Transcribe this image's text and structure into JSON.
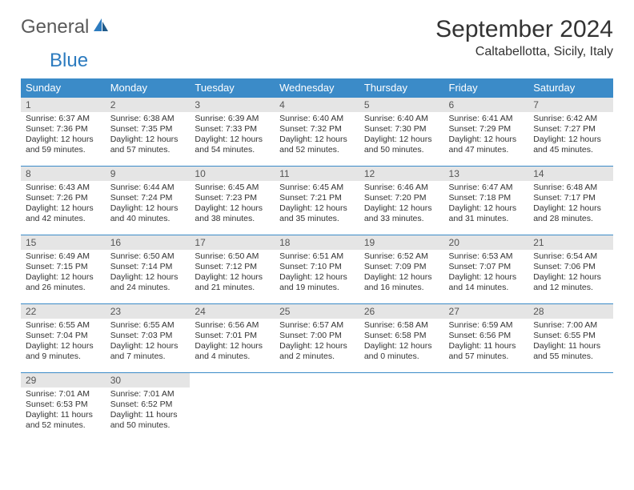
{
  "brand": {
    "general": "General",
    "blue": "Blue"
  },
  "header": {
    "month_title": "September 2024",
    "location": "Caltabellotta, Sicily, Italy"
  },
  "colors": {
    "header_bg": "#3b8bc8",
    "header_text": "#ffffff",
    "daynum_bg": "#e5e5e5",
    "cell_border": "#3b8bc8",
    "body_text": "#333333",
    "logo_gray": "#5a5a5a",
    "logo_blue": "#2c7bbf"
  },
  "weekdays": [
    "Sunday",
    "Monday",
    "Tuesday",
    "Wednesday",
    "Thursday",
    "Friday",
    "Saturday"
  ],
  "days": [
    {
      "n": "1",
      "sunrise": "Sunrise: 6:37 AM",
      "sunset": "Sunset: 7:36 PM",
      "day1": "Daylight: 12 hours",
      "day2": "and 59 minutes."
    },
    {
      "n": "2",
      "sunrise": "Sunrise: 6:38 AM",
      "sunset": "Sunset: 7:35 PM",
      "day1": "Daylight: 12 hours",
      "day2": "and 57 minutes."
    },
    {
      "n": "3",
      "sunrise": "Sunrise: 6:39 AM",
      "sunset": "Sunset: 7:33 PM",
      "day1": "Daylight: 12 hours",
      "day2": "and 54 minutes."
    },
    {
      "n": "4",
      "sunrise": "Sunrise: 6:40 AM",
      "sunset": "Sunset: 7:32 PM",
      "day1": "Daylight: 12 hours",
      "day2": "and 52 minutes."
    },
    {
      "n": "5",
      "sunrise": "Sunrise: 6:40 AM",
      "sunset": "Sunset: 7:30 PM",
      "day1": "Daylight: 12 hours",
      "day2": "and 50 minutes."
    },
    {
      "n": "6",
      "sunrise": "Sunrise: 6:41 AM",
      "sunset": "Sunset: 7:29 PM",
      "day1": "Daylight: 12 hours",
      "day2": "and 47 minutes."
    },
    {
      "n": "7",
      "sunrise": "Sunrise: 6:42 AM",
      "sunset": "Sunset: 7:27 PM",
      "day1": "Daylight: 12 hours",
      "day2": "and 45 minutes."
    },
    {
      "n": "8",
      "sunrise": "Sunrise: 6:43 AM",
      "sunset": "Sunset: 7:26 PM",
      "day1": "Daylight: 12 hours",
      "day2": "and 42 minutes."
    },
    {
      "n": "9",
      "sunrise": "Sunrise: 6:44 AM",
      "sunset": "Sunset: 7:24 PM",
      "day1": "Daylight: 12 hours",
      "day2": "and 40 minutes."
    },
    {
      "n": "10",
      "sunrise": "Sunrise: 6:45 AM",
      "sunset": "Sunset: 7:23 PM",
      "day1": "Daylight: 12 hours",
      "day2": "and 38 minutes."
    },
    {
      "n": "11",
      "sunrise": "Sunrise: 6:45 AM",
      "sunset": "Sunset: 7:21 PM",
      "day1": "Daylight: 12 hours",
      "day2": "and 35 minutes."
    },
    {
      "n": "12",
      "sunrise": "Sunrise: 6:46 AM",
      "sunset": "Sunset: 7:20 PM",
      "day1": "Daylight: 12 hours",
      "day2": "and 33 minutes."
    },
    {
      "n": "13",
      "sunrise": "Sunrise: 6:47 AM",
      "sunset": "Sunset: 7:18 PM",
      "day1": "Daylight: 12 hours",
      "day2": "and 31 minutes."
    },
    {
      "n": "14",
      "sunrise": "Sunrise: 6:48 AM",
      "sunset": "Sunset: 7:17 PM",
      "day1": "Daylight: 12 hours",
      "day2": "and 28 minutes."
    },
    {
      "n": "15",
      "sunrise": "Sunrise: 6:49 AM",
      "sunset": "Sunset: 7:15 PM",
      "day1": "Daylight: 12 hours",
      "day2": "and 26 minutes."
    },
    {
      "n": "16",
      "sunrise": "Sunrise: 6:50 AM",
      "sunset": "Sunset: 7:14 PM",
      "day1": "Daylight: 12 hours",
      "day2": "and 24 minutes."
    },
    {
      "n": "17",
      "sunrise": "Sunrise: 6:50 AM",
      "sunset": "Sunset: 7:12 PM",
      "day1": "Daylight: 12 hours",
      "day2": "and 21 minutes."
    },
    {
      "n": "18",
      "sunrise": "Sunrise: 6:51 AM",
      "sunset": "Sunset: 7:10 PM",
      "day1": "Daylight: 12 hours",
      "day2": "and 19 minutes."
    },
    {
      "n": "19",
      "sunrise": "Sunrise: 6:52 AM",
      "sunset": "Sunset: 7:09 PM",
      "day1": "Daylight: 12 hours",
      "day2": "and 16 minutes."
    },
    {
      "n": "20",
      "sunrise": "Sunrise: 6:53 AM",
      "sunset": "Sunset: 7:07 PM",
      "day1": "Daylight: 12 hours",
      "day2": "and 14 minutes."
    },
    {
      "n": "21",
      "sunrise": "Sunrise: 6:54 AM",
      "sunset": "Sunset: 7:06 PM",
      "day1": "Daylight: 12 hours",
      "day2": "and 12 minutes."
    },
    {
      "n": "22",
      "sunrise": "Sunrise: 6:55 AM",
      "sunset": "Sunset: 7:04 PM",
      "day1": "Daylight: 12 hours",
      "day2": "and 9 minutes."
    },
    {
      "n": "23",
      "sunrise": "Sunrise: 6:55 AM",
      "sunset": "Sunset: 7:03 PM",
      "day1": "Daylight: 12 hours",
      "day2": "and 7 minutes."
    },
    {
      "n": "24",
      "sunrise": "Sunrise: 6:56 AM",
      "sunset": "Sunset: 7:01 PM",
      "day1": "Daylight: 12 hours",
      "day2": "and 4 minutes."
    },
    {
      "n": "25",
      "sunrise": "Sunrise: 6:57 AM",
      "sunset": "Sunset: 7:00 PM",
      "day1": "Daylight: 12 hours",
      "day2": "and 2 minutes."
    },
    {
      "n": "26",
      "sunrise": "Sunrise: 6:58 AM",
      "sunset": "Sunset: 6:58 PM",
      "day1": "Daylight: 12 hours",
      "day2": "and 0 minutes."
    },
    {
      "n": "27",
      "sunrise": "Sunrise: 6:59 AM",
      "sunset": "Sunset: 6:56 PM",
      "day1": "Daylight: 11 hours",
      "day2": "and 57 minutes."
    },
    {
      "n": "28",
      "sunrise": "Sunrise: 7:00 AM",
      "sunset": "Sunset: 6:55 PM",
      "day1": "Daylight: 11 hours",
      "day2": "and 55 minutes."
    },
    {
      "n": "29",
      "sunrise": "Sunrise: 7:01 AM",
      "sunset": "Sunset: 6:53 PM",
      "day1": "Daylight: 11 hours",
      "day2": "and 52 minutes."
    },
    {
      "n": "30",
      "sunrise": "Sunrise: 7:01 AM",
      "sunset": "Sunset: 6:52 PM",
      "day1": "Daylight: 11 hours",
      "day2": "and 50 minutes."
    }
  ]
}
